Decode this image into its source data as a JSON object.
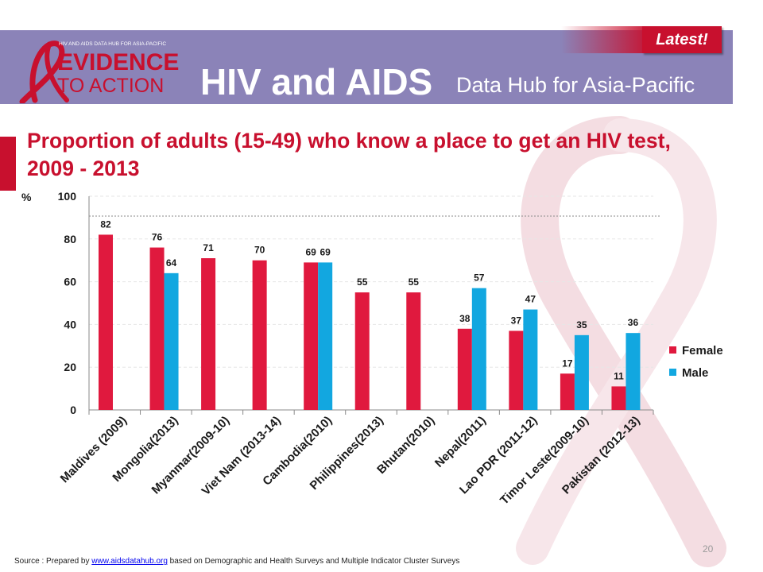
{
  "header": {
    "logo_small_text": "HIV AND AIDS DATA HUB FOR ASIA-PACIFIC",
    "logo_line1": "EVIDENCE",
    "logo_line2": "TO ACTION",
    "hub_main": "HIV and AIDS",
    "hub_sub": "Data Hub for Asia-Pacific",
    "latest_badge": "Latest!"
  },
  "colors": {
    "banner": "#8b83b8",
    "accent": "#c8102e",
    "female": "#e0193e",
    "male": "#12a7e0"
  },
  "chart_data": {
    "type": "bar",
    "title": "Proportion of adults (15-49) who know a place to get an HIV test, 2009 - 2013",
    "ylabel": "%",
    "ylim": [
      0,
      100
    ],
    "yticks": [
      0,
      20,
      40,
      60,
      80,
      100
    ],
    "grid": true,
    "legend": "right",
    "categories": [
      "Maldives (2009)",
      "Mongolia(2013)",
      "Myanmar(2009-10)",
      "Viet Nam (2013-14)",
      "Cambodia(2010)",
      "Philippines(2013)",
      "Bhutan(2010)",
      "Nepal(2011)",
      "Lao PDR (2011-12)",
      "Timor Leste(2009-10)",
      "Pakistan (2012-13)"
    ],
    "series": [
      {
        "name": "Female",
        "color": "#e0193e",
        "values": [
          82,
          76,
          71,
          70,
          69,
          55,
          55,
          38,
          37,
          17,
          11
        ]
      },
      {
        "name": "Male",
        "color": "#12a7e0",
        "values": [
          null,
          64,
          null,
          null,
          69,
          null,
          null,
          57,
          47,
          35,
          36
        ]
      }
    ]
  },
  "footer": {
    "source_prefix": "Source : Prepared by ",
    "source_link": "www.aidsdatahub.org",
    "source_suffix": " based on Demographic and Health Surveys and Multiple Indicator Cluster  Surveys",
    "page_number": "20"
  }
}
